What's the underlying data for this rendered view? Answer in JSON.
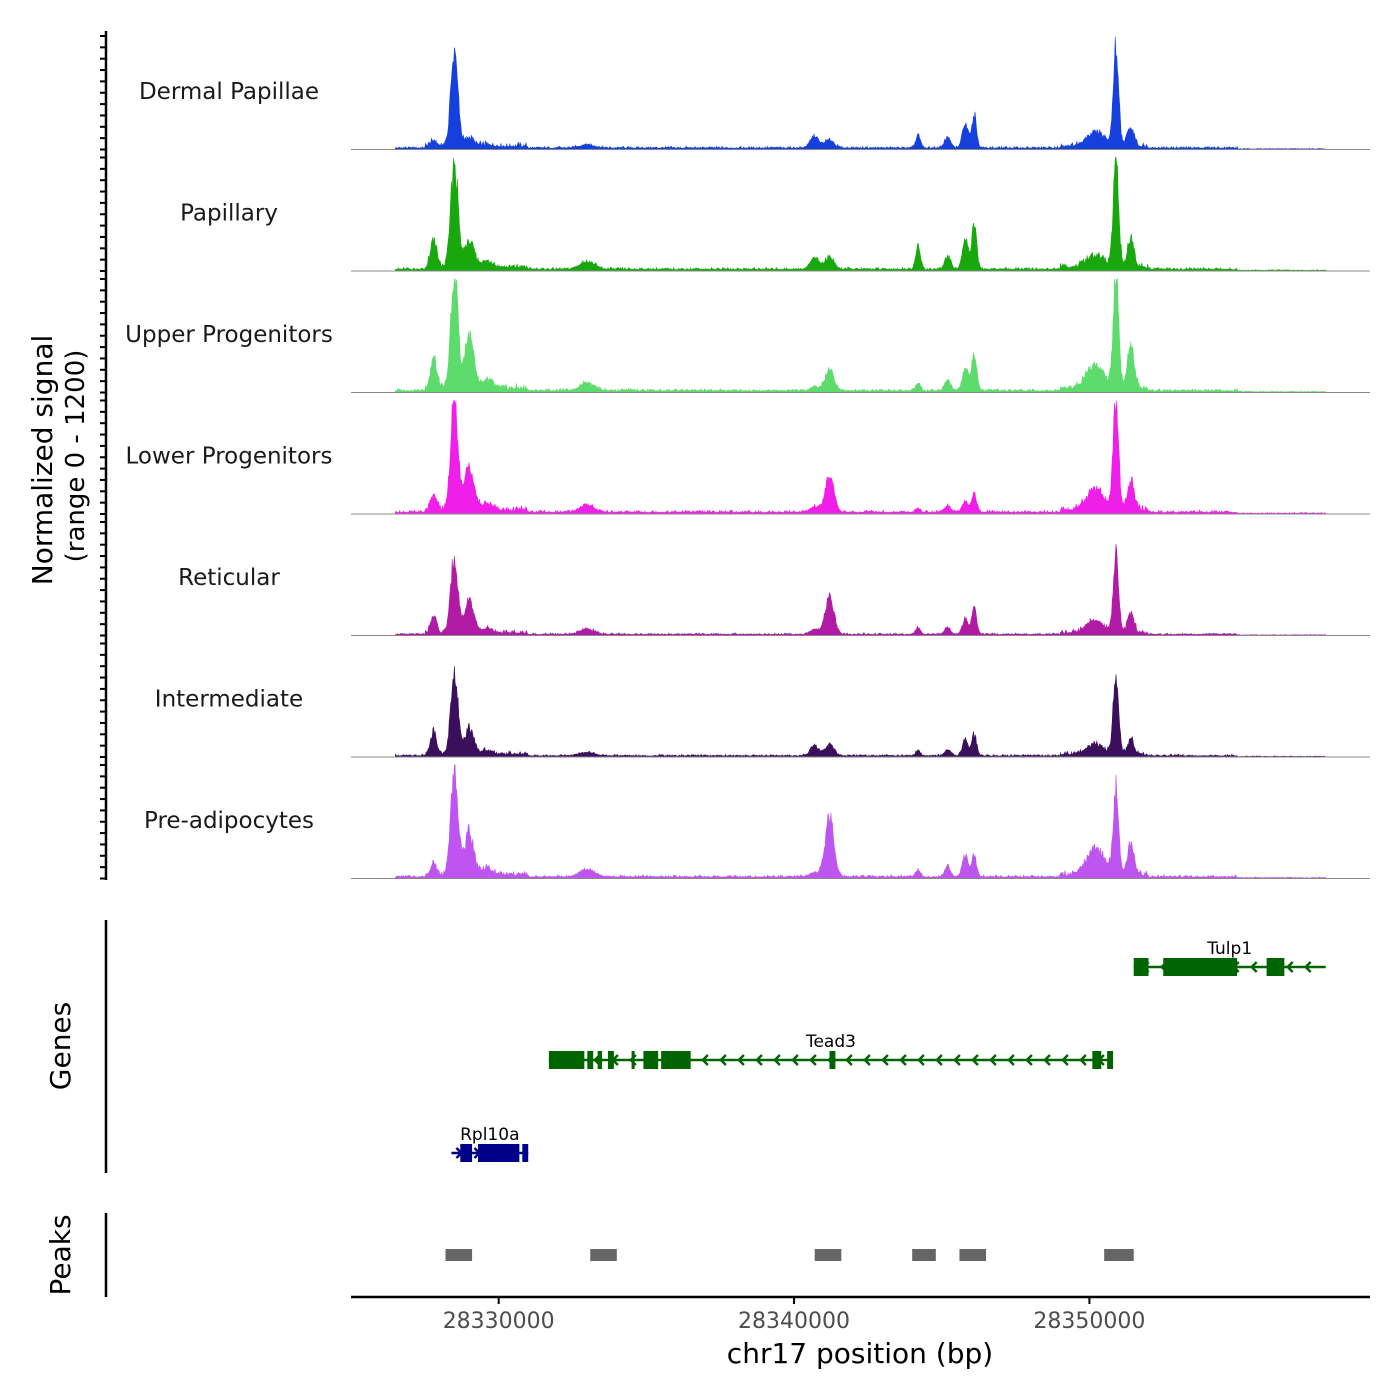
{
  "chart_data": {
    "type": "area",
    "title": "",
    "y_axis_title_line1": "Normalized signal",
    "y_axis_title_line2": "(range 0 - 1200)",
    "ylim": [
      0,
      1200
    ],
    "xlabel": "chr17 position (bp)",
    "xlim": [
      28325000,
      28359500
    ],
    "x_ticks": [
      28330000,
      28340000,
      28350000
    ],
    "x_tick_labels": [
      "28330000",
      "28340000",
      "28350000"
    ],
    "peaks_bp": [
      {
        "pos": 28328500,
        "width": 120,
        "rel": 1.0
      },
      {
        "pos": 28327800,
        "width": 100,
        "rel": 0.28
      },
      {
        "pos": 28329000,
        "width": 150,
        "rel": 0.33
      },
      {
        "pos": 28329600,
        "width": 200,
        "rel": 0.06
      },
      {
        "pos": 28333000,
        "width": 250,
        "rel": 0.07
      },
      {
        "pos": 28340700,
        "width": 150,
        "rel": 0.12
      },
      {
        "pos": 28341200,
        "width": 150,
        "rel": 0.14
      },
      {
        "pos": 28344200,
        "width": 80,
        "rel": 0.16
      },
      {
        "pos": 28345200,
        "width": 100,
        "rel": 0.12
      },
      {
        "pos": 28345800,
        "width": 100,
        "rel": 0.25
      },
      {
        "pos": 28346100,
        "width": 80,
        "rel": 0.34
      },
      {
        "pos": 28350200,
        "width": 300,
        "rel": 0.15
      },
      {
        "pos": 28350900,
        "width": 90,
        "rel": 1.0
      },
      {
        "pos": 28351400,
        "width": 110,
        "rel": 0.25
      }
    ],
    "series": [
      {
        "name": "Dermal Papillae",
        "color": "#1640de",
        "max": 1000,
        "scale": [
          1.0,
          0.2,
          0.25,
          0.3,
          0.5,
          1.0,
          0.6,
          0.8,
          1.0,
          1.0,
          1.0,
          1.0,
          1.0,
          0.9
        ]
      },
      {
        "name": "Papillary",
        "color": "#18a80d",
        "max": 1150,
        "scale": [
          0.95,
          0.9,
          0.8,
          1.0,
          1.0,
          0.9,
          0.8,
          1.3,
          0.9,
          1.1,
          1.2,
          0.7,
          1.0,
          1.0
        ]
      },
      {
        "name": "Upper Progenitors",
        "color": "#5edb6d",
        "max": 1200,
        "scale": [
          1.0,
          1.0,
          1.4,
          1.2,
          1.0,
          0.3,
          1.3,
          0.4,
          0.8,
          0.8,
          1.0,
          1.4,
          1.0,
          1.6
        ]
      },
      {
        "name": "Lower Progenitors",
        "color": "#ef1ee8",
        "max": 1200,
        "scale": [
          1.0,
          0.5,
          1.2,
          1.0,
          0.9,
          0.4,
          2.2,
          0.2,
          0.5,
          0.4,
          0.5,
          1.2,
          1.0,
          1.0
        ]
      },
      {
        "name": "Reticular",
        "color": "#b01aa5",
        "max": 800,
        "scale": [
          1.0,
          0.8,
          1.3,
          1.0,
          1.0,
          0.5,
          3.4,
          0.5,
          0.8,
          0.8,
          1.0,
          1.1,
          1.0,
          1.0
        ]
      },
      {
        "name": "Intermediate",
        "color": "#3a0f5c",
        "max": 850,
        "scale": [
          1.0,
          1.0,
          1.0,
          0.8,
          0.6,
          1.0,
          1.0,
          0.4,
          0.6,
          0.8,
          0.8,
          0.8,
          1.0,
          0.7
        ]
      },
      {
        "name": "Pre-adipocytes",
        "color": "#be55f0",
        "max": 1100,
        "scale": [
          1.0,
          0.4,
          1.2,
          1.0,
          1.0,
          0.3,
          4.1,
          0.4,
          0.8,
          0.8,
          0.6,
          1.7,
          0.82,
          1.2
        ]
      }
    ],
    "genes_axis_label": "Genes",
    "genes": [
      {
        "name": "Tulp1",
        "row": 0,
        "start": 28351500,
        "end": 28358000,
        "strand": "-",
        "color": "#006400",
        "exons": [
          [
            28351500,
            28352000
          ],
          [
            28352500,
            28355000
          ],
          [
            28356000,
            28356600
          ]
        ]
      },
      {
        "name": "Tead3",
        "row": 1,
        "start": 28331700,
        "end": 28350800,
        "strand": "-",
        "color": "#006400",
        "exons": [
          [
            28331700,
            28332900
          ],
          [
            28333000,
            28333200
          ],
          [
            28333350,
            28333500
          ],
          [
            28333700,
            28333900
          ],
          [
            28334500,
            28334600
          ],
          [
            28334900,
            28335400
          ],
          [
            28335500,
            28336500
          ],
          [
            28341200,
            28341400
          ],
          [
            28350100,
            28350400
          ],
          [
            28350600,
            28350800
          ]
        ]
      },
      {
        "name": "Rpl10a",
        "row": 2,
        "start": 28328400,
        "end": 28331000,
        "strand": "+",
        "color": "#00008b",
        "exons": [
          [
            28328700,
            28329100
          ],
          [
            28329300,
            28330700
          ],
          [
            28330800,
            28331000
          ]
        ]
      }
    ],
    "peaks_axis_label": "Peaks",
    "peaks_color": "#666666",
    "peak_regions": [
      [
        28328200,
        28329100
      ],
      [
        28333100,
        28334000
      ],
      [
        28340700,
        28341600
      ],
      [
        28344000,
        28344800
      ],
      [
        28345600,
        28346500
      ],
      [
        28350500,
        28351500
      ]
    ]
  }
}
